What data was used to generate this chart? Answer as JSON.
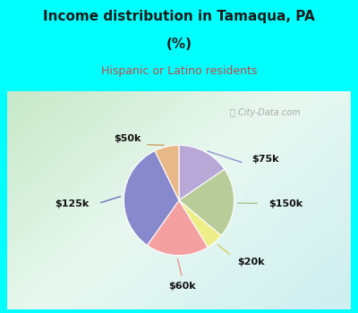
{
  "title_line1": "Income distribution in Tamaqua, PA",
  "title_line2": "(%)",
  "subtitle": "Hispanic or Latino residents",
  "title_color": "#1a1a1a",
  "subtitle_color": "#cc4444",
  "bg_color": "#00ffff",
  "labels": [
    "$75k",
    "$150k",
    "$20k",
    "$60k",
    "$125k",
    "$50k"
  ],
  "values": [
    15,
    20,
    5,
    18,
    32,
    7
  ],
  "colors": [
    "#b8a8d8",
    "#b8cc99",
    "#eeee88",
    "#f4a0a0",
    "#8888cc",
    "#e8b888"
  ],
  "label_colors": [
    "#9090cc",
    "#b0c090",
    "#d0d060",
    "#e89090",
    "#7070bb",
    "#d0a060"
  ],
  "watermark": "City-Data.com"
}
